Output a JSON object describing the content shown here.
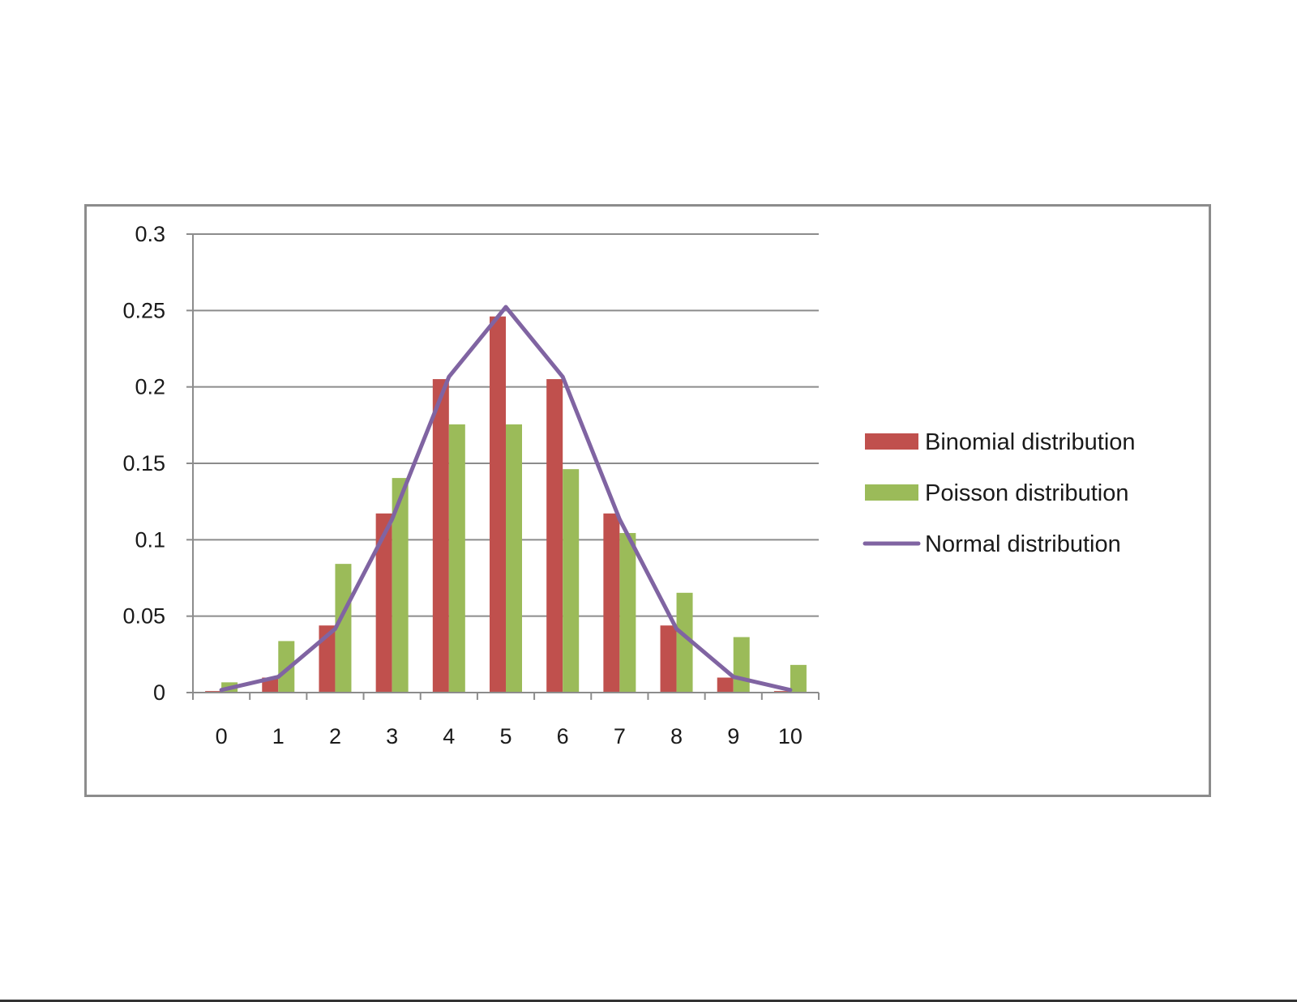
{
  "chart_data": {
    "type": "bar",
    "categories": [
      "0",
      "1",
      "2",
      "3",
      "4",
      "5",
      "6",
      "7",
      "8",
      "9",
      "10"
    ],
    "series": [
      {
        "name": "Binomial distribution",
        "kind": "bar",
        "color": "#c0504d",
        "values": [
          0.001,
          0.0098,
          0.0439,
          0.1172,
          0.2051,
          0.2461,
          0.2051,
          0.1172,
          0.0439,
          0.0098,
          0.001
        ]
      },
      {
        "name": "Poisson distribution",
        "kind": "bar",
        "color": "#9bbb59",
        "values": [
          0.0067,
          0.0337,
          0.0842,
          0.1404,
          0.1755,
          0.1755,
          0.1462,
          0.1044,
          0.0653,
          0.0363,
          0.0181
        ]
      },
      {
        "name": "Normal distribution",
        "kind": "line",
        "color": "#8064a2",
        "values": [
          0.0017,
          0.0103,
          0.0417,
          0.1134,
          0.2066,
          0.2523,
          0.2066,
          0.1134,
          0.0417,
          0.0103,
          0.0017
        ]
      }
    ],
    "ylim": [
      0,
      0.3
    ],
    "yticks": [
      "0",
      "0.05",
      "0.1",
      "0.15",
      "0.2",
      "0.25",
      "0.3"
    ],
    "grid": true,
    "legend_position": "right"
  }
}
